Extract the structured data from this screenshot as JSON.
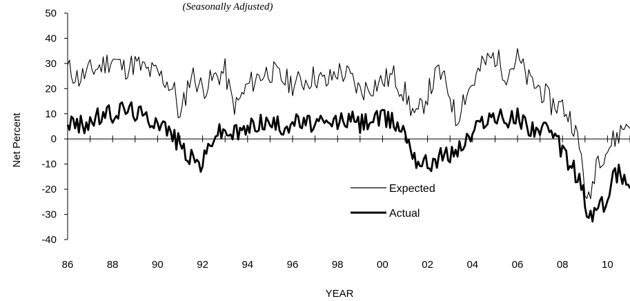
{
  "chart_data": {
    "type": "line",
    "subtitle": "(Seasonally Adjusted)",
    "xlabel": "YEAR",
    "ylabel": "Net Percent",
    "x_tick_labels": [
      "86",
      "88",
      "90",
      "92",
      "94",
      "96",
      "98",
      "00",
      "02",
      "04",
      "06",
      "08",
      "10"
    ],
    "y_tick_labels": [
      "50",
      "40",
      "30",
      "20",
      "10",
      "0",
      "-10",
      "-20",
      "-30",
      "-40"
    ],
    "xlim": [
      1986,
      2011
    ],
    "ylim": [
      -40,
      50
    ],
    "legend_position": "lower-center",
    "series": [
      {
        "name": "Expected",
        "color": "#000000",
        "x": [
          1986.0,
          1986.5,
          1987.0,
          1987.5,
          1988.0,
          1988.5,
          1989.0,
          1989.5,
          1990.0,
          1990.5,
          1990.8,
          1991.0,
          1991.3,
          1991.5,
          1992.0,
          1992.5,
          1993.0,
          1993.3,
          1993.5,
          1994.0,
          1994.5,
          1995.0,
          1995.5,
          1996.0,
          1996.5,
          1997.0,
          1997.5,
          1998.0,
          1998.5,
          1999.0,
          1999.5,
          2000.0,
          2000.5,
          2001.0,
          2001.3,
          2001.5,
          2002.0,
          2002.5,
          2003.0,
          2003.3,
          2003.5,
          2004.0,
          2004.5,
          2005.0,
          2005.5,
          2006.0,
          2006.5,
          2007.0,
          2007.5,
          2008.0,
          2008.5,
          2008.9,
          2009.1,
          2009.3,
          2009.5,
          2010.0,
          2010.5,
          2011.0
        ],
        "y": [
          28,
          24,
          27,
          29,
          32,
          28,
          30,
          27,
          26,
          22,
          18,
          7,
          20,
          26,
          20,
          24,
          27,
          15,
          13,
          21,
          25,
          27,
          24,
          22,
          23,
          25,
          22,
          27,
          25,
          19,
          21,
          23,
          25,
          18,
          12,
          8,
          18,
          27,
          18,
          6,
          15,
          22,
          30,
          33,
          26,
          32,
          23,
          20,
          14,
          13,
          6,
          -10,
          -28,
          -20,
          -8,
          -4,
          2,
          8
        ]
      },
      {
        "name": "Actual",
        "color": "#000000",
        "x": [
          1986.0,
          1986.5,
          1987.0,
          1987.5,
          1988.0,
          1988.5,
          1989.0,
          1989.5,
          1990.0,
          1990.5,
          1991.0,
          1991.5,
          1992.0,
          1992.5,
          1993.0,
          1993.5,
          1994.0,
          1994.5,
          1995.0,
          1995.5,
          1996.0,
          1996.5,
          1997.0,
          1997.5,
          1998.0,
          1998.5,
          1999.0,
          1999.5,
          2000.0,
          2000.5,
          2001.0,
          2001.5,
          2002.0,
          2002.5,
          2003.0,
          2003.5,
          2004.0,
          2004.5,
          2005.0,
          2005.5,
          2006.0,
          2006.5,
          2007.0,
          2007.5,
          2008.0,
          2008.5,
          2008.9,
          2009.1,
          2009.3,
          2009.5,
          2010.0,
          2010.3,
          2010.5,
          2011.0
        ],
        "y": [
          7,
          5,
          7,
          9,
          10,
          12,
          11,
          8,
          8,
          3,
          -2,
          -8,
          -10,
          2,
          3,
          2,
          4,
          7,
          6,
          5,
          7,
          6,
          6,
          5,
          7,
          8,
          6,
          8,
          8,
          7,
          3,
          -8,
          -10,
          -7,
          -6,
          -3,
          2,
          8,
          9,
          7,
          9,
          5,
          4,
          2,
          -5,
          -12,
          -20,
          -32,
          -30,
          -28,
          -25,
          -13,
          -14,
          -16
        ]
      }
    ]
  }
}
